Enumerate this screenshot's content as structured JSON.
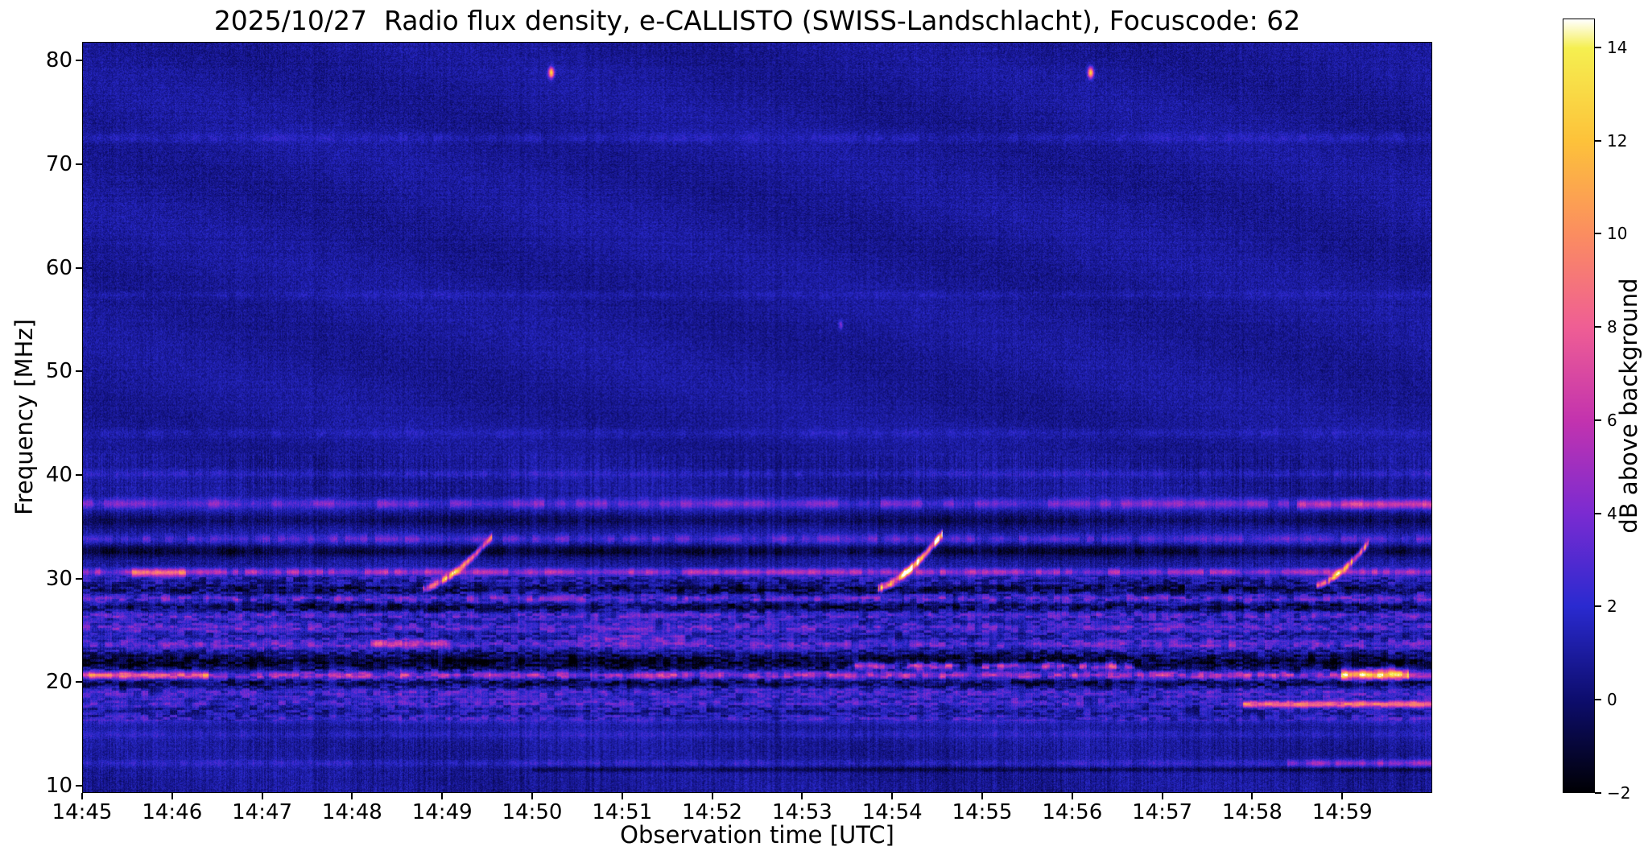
{
  "chart_data": {
    "type": "heatmap",
    "title": "2025/10/27  Radio flux density, e-CALLISTO (SWISS-Landschlacht), Focuscode: 62",
    "xlabel": "Observation time [UTC]",
    "ylabel": "Frequency [MHz]",
    "colorbar_label": "dB above background",
    "x_range_minutes": [
      0,
      15
    ],
    "y_range_mhz": [
      9.3,
      81.8
    ],
    "value_range_db": [
      -2,
      14.62
    ],
    "x_ticks": [
      {
        "label": "14:45",
        "minute": 0
      },
      {
        "label": "14:46",
        "minute": 1
      },
      {
        "label": "14:47",
        "minute": 2
      },
      {
        "label": "14:48",
        "minute": 3
      },
      {
        "label": "14:49",
        "minute": 4
      },
      {
        "label": "14:50",
        "minute": 5
      },
      {
        "label": "14:51",
        "minute": 6
      },
      {
        "label": "14:52",
        "minute": 7
      },
      {
        "label": "14:53",
        "minute": 8
      },
      {
        "label": "14:54",
        "minute": 9
      },
      {
        "label": "14:55",
        "minute": 10
      },
      {
        "label": "14:56",
        "minute": 11
      },
      {
        "label": "14:57",
        "minute": 12
      },
      {
        "label": "14:58",
        "minute": 13
      },
      {
        "label": "14:59",
        "minute": 14
      }
    ],
    "y_ticks": [
      {
        "label": "80",
        "mhz": 80
      },
      {
        "label": "70",
        "mhz": 70
      },
      {
        "label": "60",
        "mhz": 60
      },
      {
        "label": "50",
        "mhz": 50
      },
      {
        "label": "40",
        "mhz": 40
      },
      {
        "label": "30",
        "mhz": 30
      },
      {
        "label": "20",
        "mhz": 20
      },
      {
        "label": "10",
        "mhz": 10
      }
    ],
    "colorbar_ticks": [
      {
        "label": "14",
        "db": 14
      },
      {
        "label": "12",
        "db": 12
      },
      {
        "label": "10",
        "db": 10
      },
      {
        "label": "8",
        "db": 8
      },
      {
        "label": "6",
        "db": 6
      },
      {
        "label": "4",
        "db": 4
      },
      {
        "label": "2",
        "db": 2
      },
      {
        "label": "0",
        "db": 0
      },
      {
        "label": "−2",
        "db": -2
      }
    ],
    "colormap_stops": [
      {
        "v": -2,
        "color": "#000004"
      },
      {
        "v": 0,
        "color": "#0d0d6e"
      },
      {
        "v": 2,
        "color": "#2a2ad0"
      },
      {
        "v": 4,
        "color": "#7b2bd1"
      },
      {
        "v": 6,
        "color": "#c333ae"
      },
      {
        "v": 8,
        "color": "#ef5e94"
      },
      {
        "v": 10,
        "color": "#fb8d60"
      },
      {
        "v": 12,
        "color": "#fdc23a"
      },
      {
        "v": 14,
        "color": "#f5ef50"
      },
      {
        "v": 14.62,
        "color": "#ffffff"
      }
    ],
    "background": {
      "mean_db": 0.85,
      "noise_db": 0.8,
      "mottle_band_mhz": [
        16.2,
        30.2
      ]
    },
    "bands": [
      {
        "f_mhz": 37.2,
        "halfwidth_mhz": 0.5,
        "amp_db": 2.8,
        "dash": 0.55,
        "cell_s": 7
      },
      {
        "f_mhz": 37.1,
        "halfwidth_mhz": 0.45,
        "amp_db": 3.5,
        "dash": 0.45,
        "cell_s": 6,
        "t0_min": 13.5,
        "t1_min": 15
      },
      {
        "f_mhz": 35.6,
        "halfwidth_mhz": 0.6,
        "amp_db": -1.2,
        "dash": 0.3,
        "cell_s": 5
      },
      {
        "f_mhz": 33.8,
        "halfwidth_mhz": 0.45,
        "amp_db": 2.2,
        "dash": 0.6,
        "cell_s": 5
      },
      {
        "f_mhz": 32.6,
        "halfwidth_mhz": 0.55,
        "amp_db": -1.8,
        "dash": 0.35,
        "cell_s": 6
      },
      {
        "f_mhz": 30.6,
        "halfwidth_mhz": 0.35,
        "amp_db": 4.2,
        "dash": 0.55,
        "cell_s": 4
      },
      {
        "f_mhz": 30.5,
        "halfwidth_mhz": 0.4,
        "amp_db": 4.5,
        "dash": 0.25,
        "cell_s": 4,
        "t0_min": 0.55,
        "t1_min": 1.15
      },
      {
        "f_mhz": 28.9,
        "halfwidth_mhz": 0.5,
        "amp_db": -1.6,
        "dash": 0.4,
        "cell_s": 5
      },
      {
        "f_mhz": 28.0,
        "halfwidth_mhz": 0.4,
        "amp_db": 2.4,
        "dash": 0.65,
        "cell_s": 4
      },
      {
        "f_mhz": 27.2,
        "halfwidth_mhz": 0.5,
        "amp_db": -1.8,
        "dash": 0.4,
        "cell_s": 5
      },
      {
        "f_mhz": 26.4,
        "halfwidth_mhz": 0.4,
        "amp_db": 1.8,
        "dash": 0.6,
        "cell_s": 4
      },
      {
        "f_mhz": 25.2,
        "halfwidth_mhz": 0.45,
        "amp_db": 2.0,
        "dash": 0.45,
        "cell_s": 5
      },
      {
        "f_mhz": 23.6,
        "halfwidth_mhz": 0.45,
        "amp_db": 2.2,
        "dash": 0.5,
        "cell_s": 5
      },
      {
        "f_mhz": 23.7,
        "halfwidth_mhz": 0.4,
        "amp_db": 3.5,
        "dash": 0.3,
        "cell_s": 4,
        "t0_min": 3.2,
        "t1_min": 4.05
      },
      {
        "f_mhz": 24.2,
        "halfwidth_mhz": 0.4,
        "amp_db": 2.0,
        "dash": 0.4,
        "cell_s": 5,
        "t0_min": 5.5,
        "t1_min": 6.7
      },
      {
        "f_mhz": 21.9,
        "halfwidth_mhz": 0.8,
        "amp_db": -2.4,
        "dash": 0.3,
        "cell_s": 6
      },
      {
        "f_mhz": 21.5,
        "halfwidth_mhz": 0.35,
        "amp_db": 5.5,
        "dash": 0.7,
        "cell_s": 5,
        "t0_min": 8.5,
        "t1_min": 11.7
      },
      {
        "f_mhz": 20.6,
        "halfwidth_mhz": 0.35,
        "amp_db": 4.5,
        "dash": 0.5,
        "cell_s": 4
      },
      {
        "f_mhz": 20.6,
        "halfwidth_mhz": 0.4,
        "amp_db": 4.0,
        "dash": 0.25,
        "cell_s": 4,
        "t0_min": 0,
        "t1_min": 1.4
      },
      {
        "f_mhz": 20.7,
        "halfwidth_mhz": 0.5,
        "amp_db": 8.5,
        "dash": 0.3,
        "cell_s": 4,
        "t0_min": 14.0,
        "t1_min": 14.75
      },
      {
        "f_mhz": 19.8,
        "halfwidth_mhz": 0.5,
        "amp_db": -1.5,
        "dash": 0.3,
        "cell_s": 6
      },
      {
        "f_mhz": 18.9,
        "halfwidth_mhz": 0.5,
        "amp_db": 1.6,
        "dash": 0.5,
        "cell_s": 5
      },
      {
        "f_mhz": 17.9,
        "halfwidth_mhz": 0.4,
        "amp_db": 1.4,
        "dash": 0.5,
        "cell_s": 5
      },
      {
        "f_mhz": 17.8,
        "halfwidth_mhz": 0.3,
        "amp_db": 6.5,
        "dash": 0.12,
        "cell_s": 5,
        "t0_min": 12.9,
        "t1_min": 15
      },
      {
        "f_mhz": 16.3,
        "halfwidth_mhz": 0.4,
        "amp_db": 1.2,
        "dash": 0.5,
        "cell_s": 5
      },
      {
        "f_mhz": 14.9,
        "halfwidth_mhz": 0.4,
        "amp_db": 0.8,
        "dash": 0.5,
        "cell_s": 5
      },
      {
        "f_mhz": 12.1,
        "halfwidth_mhz": 0.35,
        "amp_db": 1.1,
        "dash": 0.5,
        "cell_s": 5
      },
      {
        "f_mhz": 12.1,
        "halfwidth_mhz": 0.35,
        "amp_db": 2.8,
        "dash": 0.55,
        "cell_s": 4,
        "t0_min": 13.4,
        "t1_min": 15
      },
      {
        "f_mhz": 11.5,
        "halfwidth_mhz": 0.25,
        "amp_db": -1.5,
        "dash": 0.2,
        "cell_s": 8,
        "t0_min": 5,
        "t1_min": 15
      },
      {
        "f_mhz": 72.6,
        "halfwidth_mhz": 0.5,
        "amp_db": 0.7,
        "dash": 0.6,
        "cell_s": 6
      },
      {
        "f_mhz": 57.4,
        "halfwidth_mhz": 0.4,
        "amp_db": 0.5,
        "dash": 0.6,
        "cell_s": 6
      },
      {
        "f_mhz": 44.0,
        "halfwidth_mhz": 0.5,
        "amp_db": 0.6,
        "dash": 0.6,
        "cell_s": 6
      },
      {
        "f_mhz": 40.1,
        "halfwidth_mhz": 0.4,
        "amp_db": 0.9,
        "dash": 0.5,
        "cell_s": 5
      }
    ],
    "bursts": [
      {
        "t0_min": 3.78,
        "t1_min": 4.55,
        "f0_mhz": 29.0,
        "f1_mhz": 34.0,
        "peak_db": 9,
        "width_mhz": 0.35
      },
      {
        "t0_min": 8.84,
        "t1_min": 9.56,
        "f0_mhz": 29.0,
        "f1_mhz": 34.3,
        "peak_db": 13,
        "width_mhz": 0.38
      },
      {
        "t0_min": 13.72,
        "t1_min": 14.3,
        "f0_mhz": 29.3,
        "f1_mhz": 33.4,
        "peak_db": 9,
        "width_mhz": 0.35
      }
    ],
    "spots": [
      {
        "t_min": 5.21,
        "f_mhz": 78.9,
        "peak_db": 12,
        "sigma_t_min": 0.03,
        "sigma_f_mhz": 0.5
      },
      {
        "t_min": 11.21,
        "f_mhz": 78.9,
        "peak_db": 12,
        "sigma_t_min": 0.03,
        "sigma_f_mhz": 0.5
      },
      {
        "t_min": 8.43,
        "f_mhz": 54.5,
        "peak_db": 3.5,
        "sigma_t_min": 0.02,
        "sigma_f_mhz": 0.4
      }
    ]
  }
}
